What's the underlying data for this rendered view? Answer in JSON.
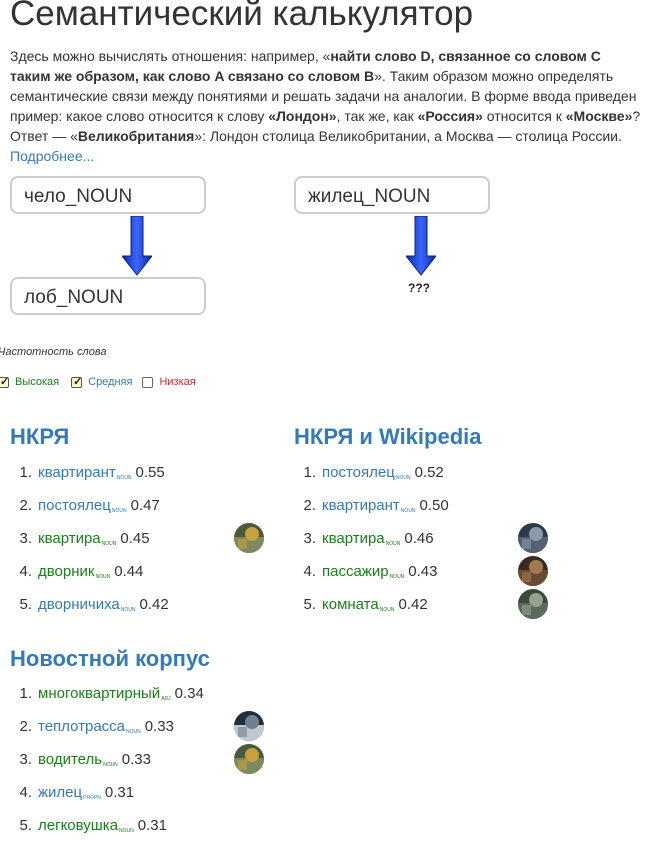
{
  "title": "Семантический калькулятор",
  "description": {
    "p1": "Здесь можно вычислять отношения: например, «",
    "b1": "найти слово D, связанное со словом C таким же образом, как слово A связано со словом B",
    "p2": "». Таким образом можно определять семантические связи между понятиями и решать задачи на аналогии. В форме ввода приведен пример: какое слово относится к слову ",
    "b2": "«Лондон»",
    "p3": ", так же, как ",
    "b3": "«Россия»",
    "p4": " относится к ",
    "b4": "«Москве»",
    "p5": "? Ответ — «",
    "b5": "Великобритания",
    "p6": "»: Лондон столица Великобритании, а Москва — столица России. ",
    "more_link": "Подробнее..."
  },
  "inputs": {
    "a": "чело_NOUN",
    "b": "лоб_NOUN",
    "c": "жилец_NOUN"
  },
  "result_placeholder": "???",
  "frequency": {
    "label": "Частотность слова",
    "options": [
      {
        "label": "Высокая",
        "checked": true
      },
      {
        "label": "Средняя",
        "checked": true
      },
      {
        "label": "Низкая",
        "checked": false
      }
    ]
  },
  "sections": {
    "nkrya": {
      "title": "НКРЯ",
      "items": [
        {
          "num": "1.",
          "word": "квартирант",
          "pos": "NOUN",
          "score": "0.55",
          "color": "blue",
          "thumb": false
        },
        {
          "num": "2.",
          "word": "постоялец",
          "pos": "NOUN",
          "score": "0.47",
          "color": "blue",
          "thumb": false
        },
        {
          "num": "3.",
          "word": "квартира",
          "pos": "NOUN",
          "score": "0.45",
          "color": "green",
          "thumb": true
        },
        {
          "num": "4.",
          "word": "дворник",
          "pos": "NOUN",
          "score": "0.44",
          "color": "green",
          "thumb": false
        },
        {
          "num": "5.",
          "word": "дворничиха",
          "pos": "NOUN",
          "score": "0.42",
          "color": "blue",
          "thumb": false
        }
      ]
    },
    "nkrya_wiki": {
      "title": "НКРЯ и Wikipedia",
      "items": [
        {
          "num": "1.",
          "word": "постоялец",
          "pos": "NOUN",
          "score": "0.52",
          "color": "blue",
          "thumb": false
        },
        {
          "num": "2.",
          "word": "квартирант",
          "pos": "NOUN",
          "score": "0.50",
          "color": "blue",
          "thumb": false
        },
        {
          "num": "3.",
          "word": "квартира",
          "pos": "NOUN",
          "score": "0.46",
          "color": "green",
          "thumb": true
        },
        {
          "num": "4.",
          "word": "пассажир",
          "pos": "NOUN",
          "score": "0.43",
          "color": "green",
          "thumb": true
        },
        {
          "num": "5.",
          "word": "комната",
          "pos": "NOUN",
          "score": "0.42",
          "color": "green",
          "thumb": true
        }
      ]
    },
    "news": {
      "title": "Новостной корпус",
      "items": [
        {
          "num": "1.",
          "word": "многоквартирный",
          "pos": "ADJ",
          "score": "0.34",
          "color": "green",
          "thumb": false
        },
        {
          "num": "2.",
          "word": "теплотрасса",
          "pos": "NOUN",
          "score": "0.33",
          "color": "blue",
          "thumb": true
        },
        {
          "num": "3.",
          "word": "водитель",
          "pos": "NOUN",
          "score": "0.33",
          "color": "green",
          "thumb": true
        },
        {
          "num": "4.",
          "word": "жилец",
          "pos": "PROPN",
          "score": "0.31",
          "color": "blue",
          "thumb": false
        },
        {
          "num": "5.",
          "word": "легковушка",
          "pos": "NOUN",
          "score": "0.31",
          "color": "green",
          "thumb": false
        }
      ]
    }
  },
  "colors": {
    "link_blue": "#337ab7",
    "high_green": "#1a7f1a",
    "low_red": "#cc2b2b",
    "arrow_blue": "#1a3fcf"
  }
}
